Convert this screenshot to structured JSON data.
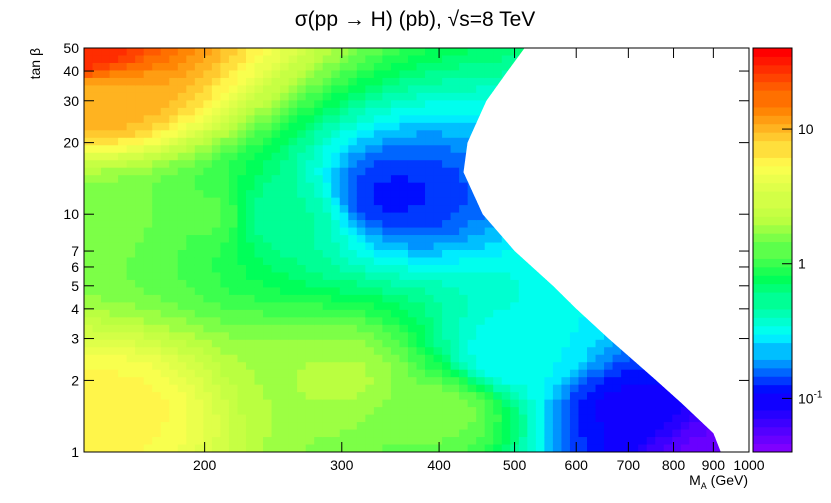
{
  "chart_data": {
    "type": "heatmap",
    "title": "σ(pp → H) (pb), √s=8 TeV",
    "xlabel": "M",
    "xlabel_sub": "A",
    "xlabel_unit": " (GeV)",
    "ylabel": "tan β",
    "x_scale": "log",
    "y_scale": "log",
    "z_scale": "log",
    "xlim": [
      140,
      1000
    ],
    "ylim": [
      1,
      50
    ],
    "zlim": [
      0.04,
      40
    ],
    "x_ticks": [
      200,
      300,
      400,
      500,
      600,
      700,
      800,
      900,
      1000
    ],
    "y_ticks": [
      1,
      2,
      3,
      4,
      5,
      6,
      7,
      10,
      20,
      30,
      40,
      50
    ],
    "z_ticks": [
      {
        "value": 0.1,
        "base": "10",
        "exp": "-1"
      },
      {
        "value": 1,
        "base": "1",
        "exp": ""
      },
      {
        "value": 10,
        "base": "10",
        "exp": ""
      }
    ],
    "colormap": [
      "#7f00ff",
      "#0000ff",
      "#00ffff",
      "#00ff55",
      "#b8ff40",
      "#ffff50",
      "#ff8000",
      "#ff0000"
    ],
    "grid": false,
    "valid_region": {
      "comment_free_boundary_mass_vs_tanb": true,
      "boundary": [
        {
          "tanb": 1,
          "mass": 920
        },
        {
          "tanb": 1.2,
          "mass": 900
        },
        {
          "tanb": 1.6,
          "mass": 820
        },
        {
          "tanb": 2,
          "mass": 760
        },
        {
          "tanb": 3,
          "mass": 660
        },
        {
          "tanb": 4,
          "mass": 600
        },
        {
          "tanb": 5,
          "mass": 560
        },
        {
          "tanb": 7,
          "mass": 500
        },
        {
          "tanb": 10,
          "mass": 455
        },
        {
          "tanb": 15,
          "mass": 430
        },
        {
          "tanb": 20,
          "mass": 435
        },
        {
          "tanb": 30,
          "mass": 460
        },
        {
          "tanb": 40,
          "mass": 490
        },
        {
          "tanb": 50,
          "mass": 515
        }
      ]
    },
    "z_samples": [
      {
        "mass": 140,
        "tanb": 50,
        "z": 30
      },
      {
        "mass": 150,
        "tanb": 30,
        "z": 10
      },
      {
        "mass": 150,
        "tanb": 10,
        "z": 1.5
      },
      {
        "mass": 150,
        "tanb": 1.5,
        "z": 6
      },
      {
        "mass": 200,
        "tanb": 10,
        "z": 1.2
      },
      {
        "mass": 250,
        "tanb": 10,
        "z": 0.5
      },
      {
        "mass": 300,
        "tanb": 2,
        "z": 2
      },
      {
        "mass": 350,
        "tanb": 12,
        "z": 0.12
      },
      {
        "mass": 400,
        "tanb": 1.5,
        "z": 1.5
      },
      {
        "mass": 500,
        "tanb": 2.5,
        "z": 0.3
      },
      {
        "mass": 700,
        "tanb": 1.5,
        "z": 0.1
      },
      {
        "mass": 900,
        "tanb": 1,
        "z": 0.05
      }
    ]
  }
}
